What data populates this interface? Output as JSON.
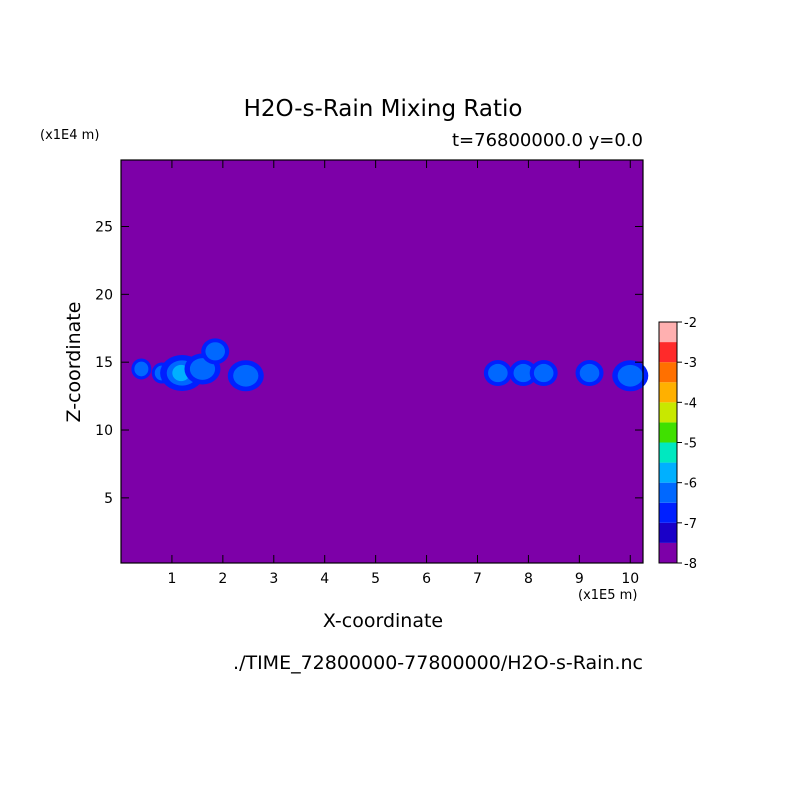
{
  "chart_data": {
    "type": "heatmap",
    "title": "H2O-s-Rain Mixing Ratio",
    "subtitle": "t=76800000.0 y=0.0",
    "xlabel": "X-coordinate",
    "ylabel": "Z-coordinate",
    "x_unit": "(x1E5 m)",
    "y_unit": "(x1E4 m)",
    "source": "./TIME_72800000-77800000/H2O-s-Rain.nc",
    "xlim": [
      0,
      10.25
    ],
    "ylim": [
      0.2,
      29.9
    ],
    "x_ticks": [
      1,
      2,
      3,
      4,
      5,
      6,
      7,
      8,
      9,
      10
    ],
    "y_ticks": [
      5,
      10,
      15,
      20,
      25
    ],
    "colorbar": {
      "levels": [
        -8,
        -7.5,
        -7,
        -6.5,
        -6,
        -5.5,
        -5,
        -4.5,
        -4,
        -3.5,
        -3,
        -2.5,
        -2
      ],
      "tick_labels": [
        "-2",
        "-3",
        "-4",
        "-5",
        "-6",
        "-7",
        "-8"
      ],
      "colors": [
        "#7d00a8",
        "#1a00c8",
        "#0020ff",
        "#0068ff",
        "#00b0ff",
        "#00e8c0",
        "#40e000",
        "#c8e800",
        "#ffb000",
        "#ff7000",
        "#ff2a2a",
        "#ffb0b0"
      ]
    },
    "background_value": -8,
    "features": [
      {
        "x": 0.4,
        "z": 14.5,
        "level": -7.5
      },
      {
        "x": 0.8,
        "z": 14.2,
        "level": -7.5
      },
      {
        "x": 1.2,
        "z": 14.2,
        "level": -6
      },
      {
        "x": 1.6,
        "z": 14.5,
        "level": -6.5
      },
      {
        "x": 1.85,
        "z": 15.8,
        "level": -7
      },
      {
        "x": 2.45,
        "z": 14.0,
        "level": -6.5
      },
      {
        "x": 7.4,
        "z": 14.2,
        "level": -7
      },
      {
        "x": 7.9,
        "z": 14.2,
        "level": -7
      },
      {
        "x": 8.3,
        "z": 14.2,
        "level": -7
      },
      {
        "x": 9.2,
        "z": 14.2,
        "level": -7
      },
      {
        "x": 10.0,
        "z": 14.0,
        "level": -6.5
      }
    ]
  }
}
